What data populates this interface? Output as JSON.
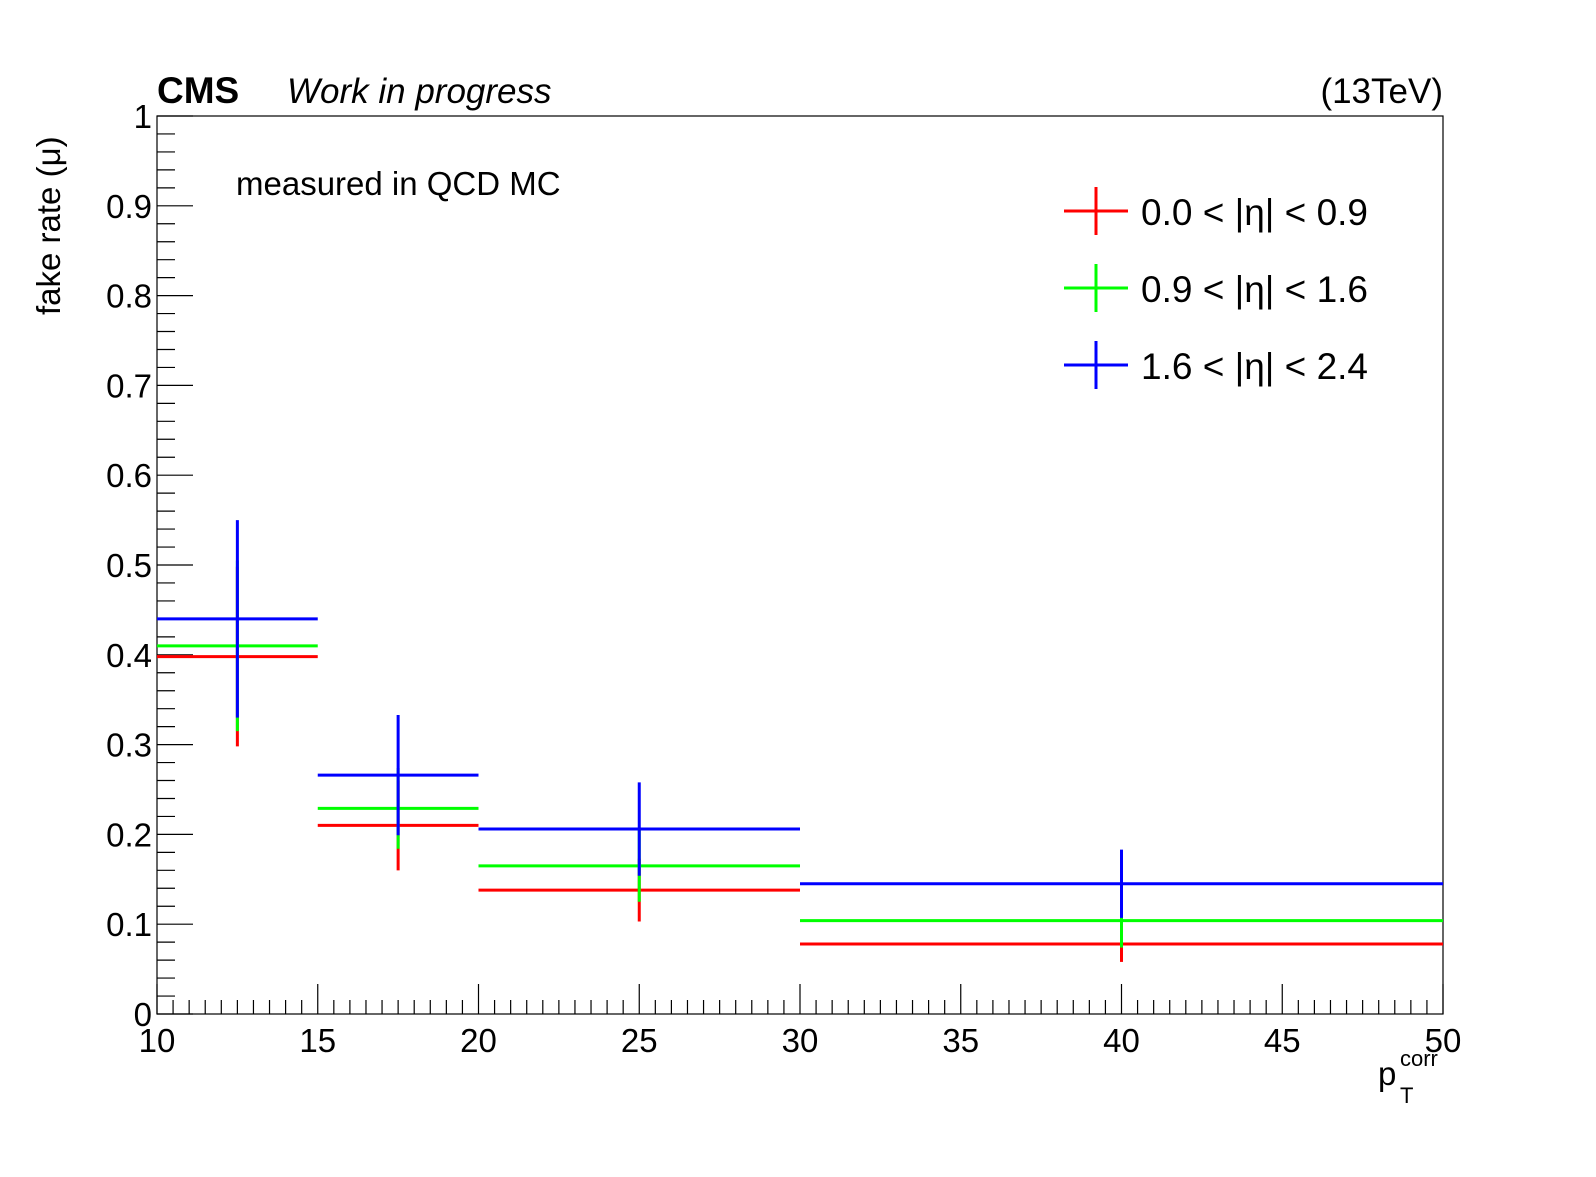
{
  "header": {
    "experiment": "CMS",
    "status": "Work in progress",
    "energy": "(13TeV)",
    "annotation": "measured in QCD MC"
  },
  "chart_data": {
    "type": "histogram-errorbars",
    "xlabel_main": "p",
    "xlabel_sub": "T",
    "xlabel_sup": "corr",
    "ylabel": "fake rate (μ)",
    "xlim": [
      10,
      50
    ],
    "ylim": [
      0,
      1
    ],
    "x_major_ticks": [
      10,
      15,
      20,
      25,
      30,
      35,
      40,
      45,
      50
    ],
    "x_tick_labels": [
      "10",
      "15",
      "20",
      "25",
      "30",
      "35",
      "40",
      "45",
      "50"
    ],
    "y_major_ticks": [
      0,
      0.1,
      0.2,
      0.3,
      0.4,
      0.5,
      0.6,
      0.7,
      0.8,
      0.9,
      1
    ],
    "y_tick_labels": [
      "0",
      "0.1",
      "0.2",
      "0.3",
      "0.4",
      "0.5",
      "0.6",
      "0.7",
      "0.8",
      "0.9",
      "1"
    ],
    "legend_position": "top-right",
    "bins": [
      [
        10,
        15
      ],
      [
        15,
        20
      ],
      [
        20,
        30
      ],
      [
        30,
        50
      ]
    ],
    "series": [
      {
        "name": "0.0 < |η| < 0.9",
        "color": "#ff0000",
        "values": [
          0.398,
          0.21,
          0.138,
          0.078
        ],
        "errors": [
          0.1,
          0.05,
          0.035,
          0.02
        ]
      },
      {
        "name": "0.9 < |η| < 1.6",
        "color": "#00ff00",
        "values": [
          0.41,
          0.229,
          0.165,
          0.104
        ],
        "errors": [
          0.095,
          0.045,
          0.04,
          0.03
        ]
      },
      {
        "name": "1.6 < |η| < 2.4",
        "color": "#0000ff",
        "values": [
          0.44,
          0.266,
          0.206,
          0.145
        ],
        "errors": [
          0.11,
          0.067,
          0.052,
          0.038
        ]
      }
    ]
  }
}
